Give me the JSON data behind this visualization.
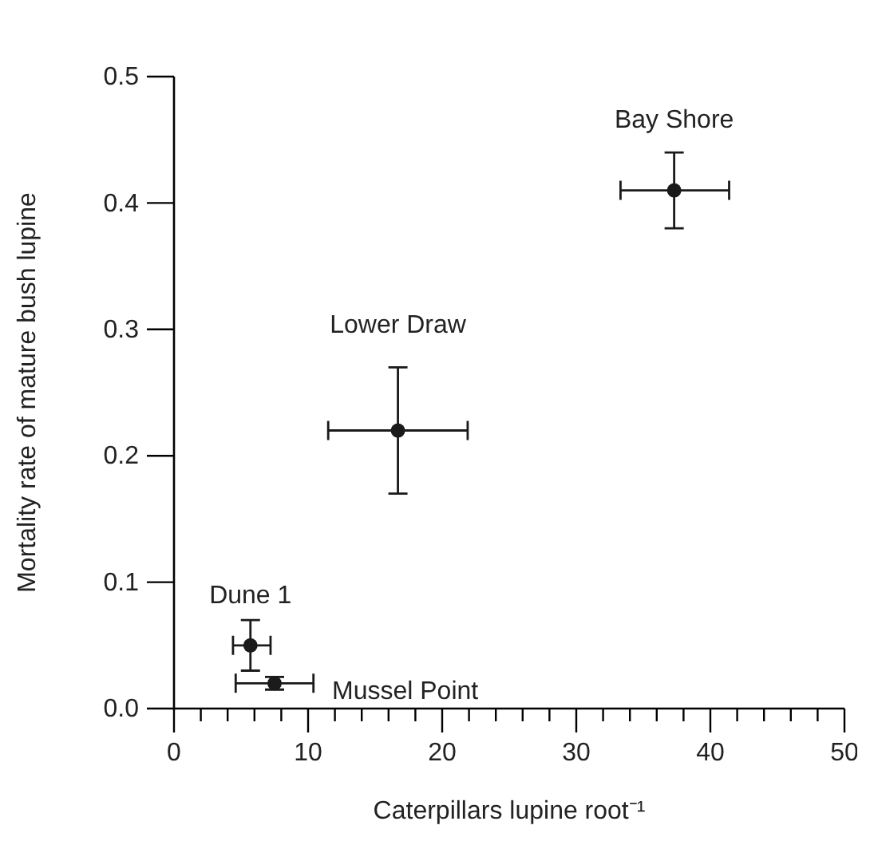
{
  "chart_data": {
    "type": "scatter",
    "xlabel": "Caterpillars lupine root⁻¹",
    "ylabel": "Mortality rate of mature bush lupine",
    "x": [
      37.3,
      16.7,
      5.7,
      7.5
    ],
    "values": [
      0.41,
      0.22,
      0.05,
      0.02
    ],
    "errors": [
      [
        0.38,
        0.44
      ],
      [
        0.17,
        0.27
      ],
      [
        0.03,
        0.07
      ],
      [
        0.015,
        0.025
      ]
    ],
    "xerrors": [
      [
        33.3,
        41.4
      ],
      [
        11.5,
        21.9
      ],
      [
        4.4,
        7.2
      ],
      [
        4.6,
        10.4
      ]
    ],
    "color": "#1a1a1a",
    "marker": "circle",
    "annotations": [
      "Bay Shore",
      "Lower Draw",
      "Dune 1",
      "Mussel Point"
    ],
    "xlim": [
      0,
      50
    ],
    "ylim": [
      0,
      0.5
    ],
    "xticks": [
      0,
      {
        "value": 2,
        "label": null
      },
      {
        "value": 4,
        "label": null
      },
      {
        "value": 6,
        "label": null
      },
      {
        "value": 8,
        "label": null
      },
      10,
      {
        "value": 12,
        "label": null
      },
      {
        "value": 14,
        "label": null
      },
      {
        "value": 16,
        "label": null
      },
      {
        "value": 18,
        "label": null
      },
      20,
      {
        "value": 22,
        "label": null
      },
      {
        "value": 24,
        "label": null
      },
      {
        "value": 26,
        "label": null
      },
      {
        "value": 28,
        "label": null
      },
      30,
      {
        "value": 32,
        "label": null
      },
      {
        "value": 34,
        "label": null
      },
      {
        "value": 36,
        "label": null
      },
      {
        "value": 38,
        "label": null
      },
      40,
      {
        "value": 42,
        "label": null
      },
      {
        "value": 44,
        "label": null
      },
      {
        "value": 46,
        "label": null
      },
      {
        "value": 48,
        "label": null
      },
      50
    ],
    "yticks": [
      {
        "value": 0,
        "label": "0.0"
      },
      0.1,
      0.2,
      0.3,
      0.4,
      0.5
    ]
  }
}
